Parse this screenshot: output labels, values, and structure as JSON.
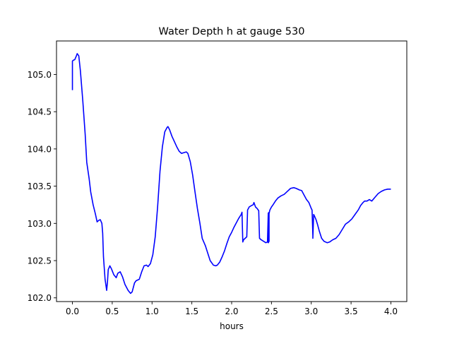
{
  "chart_data": {
    "type": "line",
    "title": "Water Depth h at gauge 530",
    "xlabel": "hours",
    "ylabel": "",
    "xlim": [
      -0.2,
      4.2
    ],
    "ylim": [
      101.95,
      105.45
    ],
    "xticks": [
      0.0,
      0.5,
      1.0,
      1.5,
      2.0,
      2.5,
      3.0,
      3.5,
      4.0
    ],
    "xtick_labels": [
      "0.0",
      "0.5",
      "1.0",
      "1.5",
      "2.0",
      "2.5",
      "3.0",
      "3.5",
      "4.0"
    ],
    "yticks": [
      102.0,
      102.5,
      103.0,
      103.5,
      104.0,
      104.5,
      105.0
    ],
    "ytick_labels": [
      "102.0",
      "102.5",
      "103.0",
      "103.5",
      "104.0",
      "104.5",
      "105.0"
    ],
    "grid": false,
    "legend": "none",
    "line_color": "#0000ff",
    "series": [
      {
        "x": [
          0.0,
          0.0,
          0.01,
          0.03,
          0.05,
          0.06,
          0.08,
          0.1,
          0.13,
          0.16,
          0.18,
          0.21,
          0.23,
          0.26,
          0.29,
          0.31,
          0.33,
          0.35,
          0.37,
          0.38,
          0.39,
          0.41,
          0.43,
          0.44,
          0.45,
          0.47,
          0.49,
          0.52,
          0.55,
          0.57,
          0.6,
          0.63,
          0.66,
          0.7,
          0.73,
          0.75,
          0.78,
          0.8,
          0.84,
          0.87,
          0.9,
          0.93,
          0.95,
          0.98,
          1.01,
          1.04,
          1.07,
          1.1,
          1.13,
          1.16,
          1.19,
          1.2,
          1.22,
          1.25,
          1.28,
          1.31,
          1.34,
          1.37,
          1.4,
          1.43,
          1.45,
          1.48,
          1.51,
          1.54,
          1.57,
          1.6,
          1.63,
          1.67,
          1.7,
          1.73,
          1.77,
          1.8,
          1.82,
          1.85,
          1.88,
          1.91,
          1.94,
          1.97,
          2.0,
          2.03,
          2.06,
          2.09,
          2.12,
          2.13,
          2.14,
          2.15,
          2.17,
          2.19,
          2.2,
          2.22,
          2.25,
          2.27,
          2.28,
          2.3,
          2.32,
          2.34,
          2.35,
          2.37,
          2.4,
          2.43,
          2.45,
          2.46,
          2.46,
          2.47,
          2.47,
          2.47,
          2.48,
          2.49,
          2.5,
          2.52,
          2.55,
          2.58,
          2.62,
          2.66,
          2.7,
          2.74,
          2.78,
          2.81,
          2.85,
          2.88,
          2.91,
          2.94,
          2.97,
          3.0,
          3.01,
          3.02,
          3.02,
          3.03,
          3.04,
          3.06,
          3.08,
          3.1,
          3.13,
          3.16,
          3.2,
          3.23,
          3.27,
          3.31,
          3.35,
          3.39,
          3.43,
          3.47,
          3.51,
          3.55,
          3.59,
          3.62,
          3.65,
          3.67,
          3.7,
          3.73,
          3.76,
          3.8,
          3.84,
          3.88,
          3.92,
          3.96,
          4.0
        ],
        "y": [
          104.79,
          105.18,
          105.19,
          105.2,
          105.25,
          105.28,
          105.25,
          105.05,
          104.65,
          104.2,
          103.82,
          103.6,
          103.42,
          103.25,
          103.12,
          103.02,
          103.04,
          103.05,
          103.0,
          102.87,
          102.55,
          102.25,
          102.1,
          102.21,
          102.38,
          102.43,
          102.39,
          102.31,
          102.27,
          102.33,
          102.35,
          102.28,
          102.18,
          102.1,
          102.06,
          102.08,
          102.2,
          102.23,
          102.25,
          102.35,
          102.43,
          102.44,
          102.42,
          102.46,
          102.58,
          102.82,
          103.22,
          103.7,
          104.03,
          104.23,
          104.29,
          104.3,
          104.26,
          104.17,
          104.1,
          104.03,
          103.97,
          103.94,
          103.95,
          103.96,
          103.94,
          103.83,
          103.65,
          103.42,
          103.2,
          103.01,
          102.8,
          102.7,
          102.6,
          102.5,
          102.44,
          102.43,
          102.44,
          102.48,
          102.55,
          102.63,
          102.73,
          102.82,
          102.88,
          102.95,
          103.01,
          103.07,
          103.12,
          103.15,
          102.75,
          102.78,
          102.8,
          102.82,
          103.18,
          103.22,
          103.24,
          103.25,
          103.28,
          103.22,
          103.2,
          103.17,
          102.8,
          102.78,
          102.76,
          102.74,
          102.75,
          103.14,
          102.74,
          102.76,
          103.15,
          103.13,
          103.18,
          103.2,
          103.22,
          103.25,
          103.3,
          103.34,
          103.37,
          103.39,
          103.43,
          103.47,
          103.48,
          103.47,
          103.45,
          103.44,
          103.38,
          103.32,
          103.28,
          103.2,
          103.18,
          102.84,
          102.8,
          103.12,
          103.1,
          103.05,
          102.98,
          102.9,
          102.8,
          102.76,
          102.74,
          102.75,
          102.78,
          102.8,
          102.85,
          102.92,
          102.99,
          103.02,
          103.06,
          103.12,
          103.18,
          103.24,
          103.28,
          103.3,
          103.3,
          103.32,
          103.3,
          103.35,
          103.4,
          103.43,
          103.45,
          103.46,
          103.46
        ]
      }
    ]
  }
}
